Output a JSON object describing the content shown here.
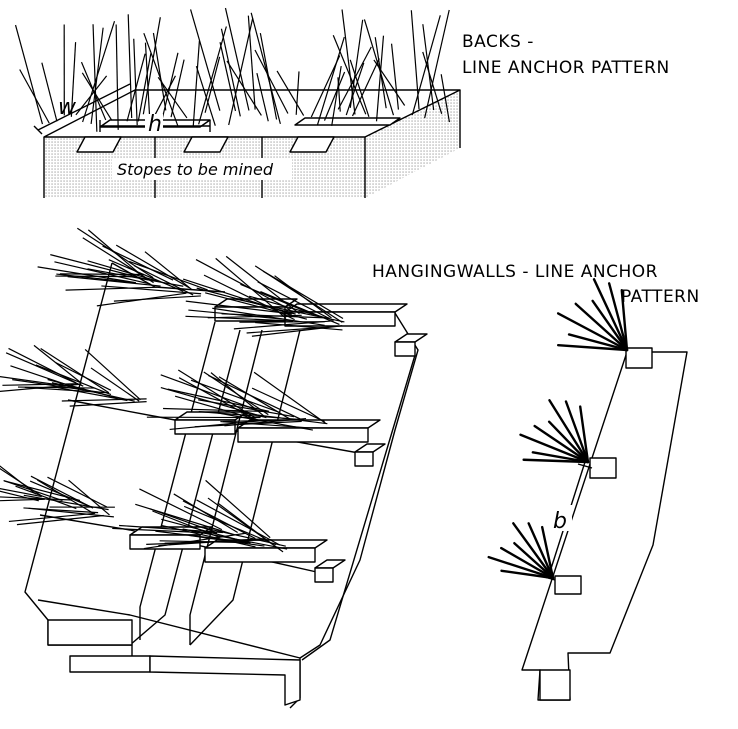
{
  "labels": {
    "backs_line1": "BACKS -",
    "backs_line2": "LINE ANCHOR PATTERN",
    "hw_line1": "HANGINGWALLS - LINE ANCHOR",
    "hw_line2": "PATTERN",
    "stopes": "Stopes to be mined",
    "w": "w",
    "h": "h",
    "b": "b"
  },
  "colors": {
    "stipple": "#9a9a9a",
    "line": "#000000"
  }
}
